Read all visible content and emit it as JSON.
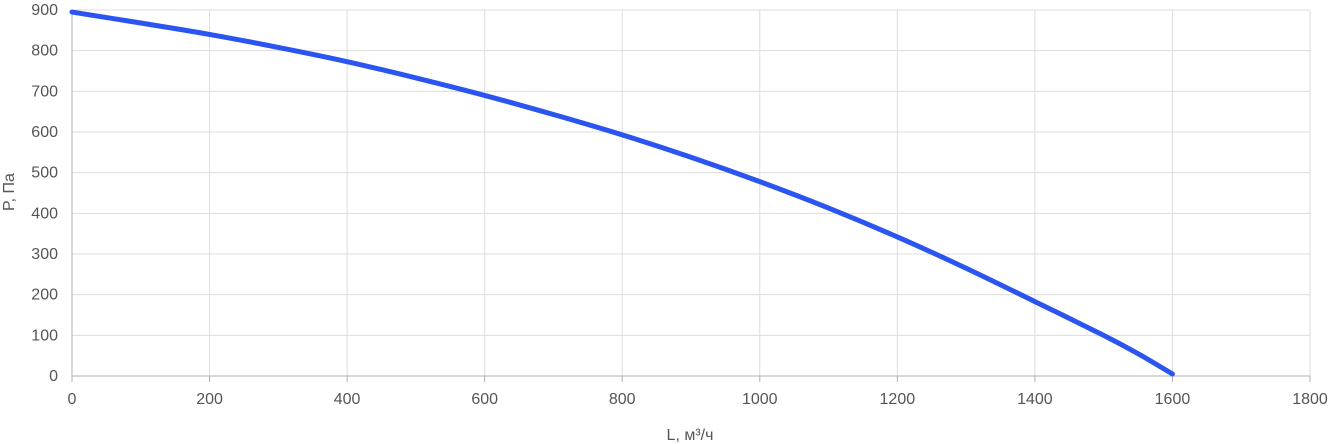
{
  "chart_data": {
    "type": "line",
    "xlabel": "L, м³/ч",
    "ylabel": "P, Па",
    "xlim": [
      0,
      1800
    ],
    "ylim": [
      0,
      900
    ],
    "xticks": [
      0,
      200,
      400,
      600,
      800,
      1000,
      1200,
      1400,
      1600,
      1800
    ],
    "yticks": [
      0,
      100,
      200,
      300,
      400,
      500,
      600,
      700,
      800,
      900
    ],
    "grid": true,
    "series": [
      {
        "color": "#2b55f0",
        "x": [
          0,
          100,
          200,
          300,
          400,
          500,
          600,
          700,
          800,
          900,
          1000,
          1100,
          1200,
          1300,
          1400,
          1500,
          1550,
          1600
        ],
        "y": [
          895,
          868,
          840,
          808,
          773,
          733,
          690,
          643,
          593,
          538,
          478,
          413,
          342,
          265,
          183,
          100,
          55,
          5
        ]
      }
    ]
  }
}
